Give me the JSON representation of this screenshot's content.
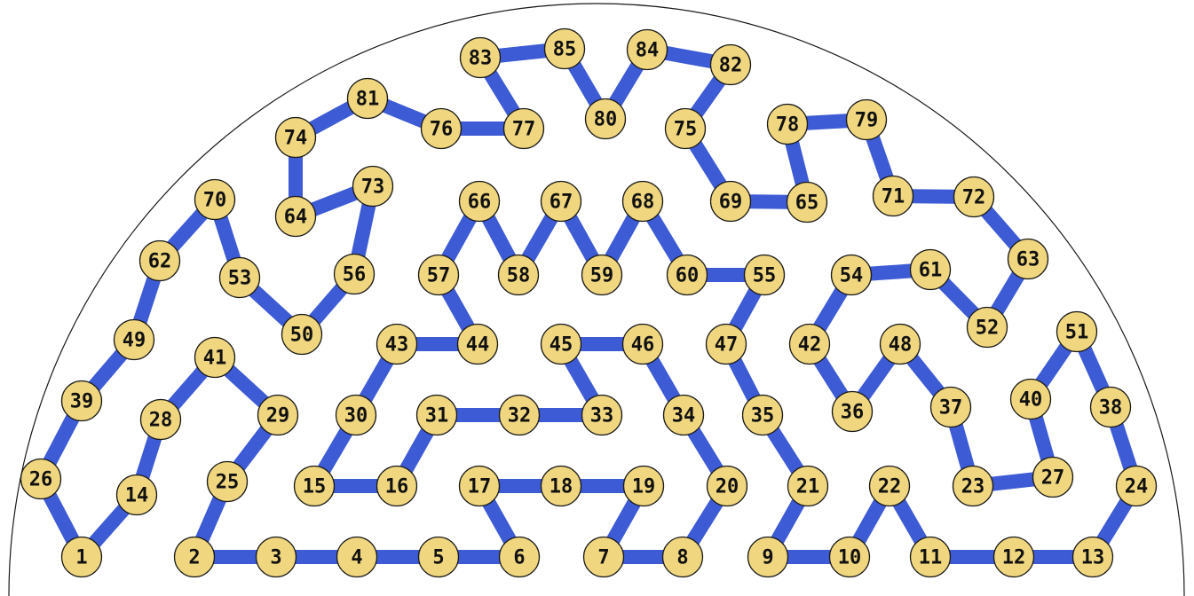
{
  "colors": {
    "edge": "#3d5bd4",
    "node_fill": "#f0d77f",
    "node_stroke": "#1a1a1a",
    "label": "#111111",
    "boundary": "#1a1a1a"
  },
  "nodes": [
    "1",
    "2",
    "3",
    "4",
    "5",
    "6",
    "7",
    "8",
    "9",
    "10",
    "11",
    "12",
    "13",
    "14",
    "15",
    "16",
    "17",
    "18",
    "19",
    "20",
    "21",
    "22",
    "23",
    "24",
    "25",
    "26",
    "27",
    "28",
    "29",
    "30",
    "31",
    "32",
    "33",
    "34",
    "35",
    "36",
    "37",
    "38",
    "39",
    "40",
    "41",
    "42",
    "43",
    "44",
    "45",
    "46",
    "47",
    "48",
    "49",
    "50",
    "51",
    "52",
    "53",
    "54",
    "55",
    "56",
    "57",
    "58",
    "59",
    "60",
    "61",
    "62",
    "63",
    "64",
    "65",
    "66",
    "67",
    "68",
    "69",
    "70",
    "71",
    "72",
    "73",
    "74",
    "75",
    "76",
    "77",
    "78",
    "79",
    "80",
    "81",
    "82",
    "83",
    "84",
    "85"
  ],
  "edges": [
    [
      "1",
      "14"
    ],
    [
      "14",
      "28"
    ],
    [
      "28",
      "41"
    ],
    [
      "41",
      "29"
    ],
    [
      "29",
      "25"
    ],
    [
      "25",
      "2"
    ],
    [
      "2",
      "3"
    ],
    [
      "3",
      "4"
    ],
    [
      "4",
      "5"
    ],
    [
      "5",
      "6"
    ],
    [
      "6",
      "17"
    ],
    [
      "17",
      "18"
    ],
    [
      "18",
      "19"
    ],
    [
      "19",
      "7"
    ],
    [
      "7",
      "8"
    ],
    [
      "8",
      "20"
    ],
    [
      "20",
      "34"
    ],
    [
      "34",
      "46"
    ],
    [
      "46",
      "45"
    ],
    [
      "45",
      "33"
    ],
    [
      "33",
      "32"
    ],
    [
      "32",
      "31"
    ],
    [
      "31",
      "16"
    ],
    [
      "16",
      "15"
    ],
    [
      "15",
      "30"
    ],
    [
      "30",
      "43"
    ],
    [
      "43",
      "44"
    ],
    [
      "44",
      "57"
    ],
    [
      "57",
      "66"
    ],
    [
      "66",
      "58"
    ],
    [
      "58",
      "67"
    ],
    [
      "67",
      "59"
    ],
    [
      "59",
      "68"
    ],
    [
      "68",
      "60"
    ],
    [
      "60",
      "55"
    ],
    [
      "55",
      "47"
    ],
    [
      "47",
      "35"
    ],
    [
      "35",
      "21"
    ],
    [
      "21",
      "9"
    ],
    [
      "9",
      "10"
    ],
    [
      "10",
      "22"
    ],
    [
      "22",
      "11"
    ],
    [
      "11",
      "12"
    ],
    [
      "12",
      "13"
    ],
    [
      "13",
      "24"
    ],
    [
      "24",
      "38"
    ],
    [
      "38",
      "51"
    ],
    [
      "51",
      "40"
    ],
    [
      "40",
      "27"
    ],
    [
      "27",
      "23"
    ],
    [
      "23",
      "37"
    ],
    [
      "37",
      "48"
    ],
    [
      "48",
      "36"
    ],
    [
      "36",
      "42"
    ],
    [
      "42",
      "54"
    ],
    [
      "54",
      "61"
    ],
    [
      "61",
      "52"
    ],
    [
      "52",
      "63"
    ],
    [
      "63",
      "72"
    ],
    [
      "72",
      "71"
    ],
    [
      "71",
      "79"
    ],
    [
      "79",
      "78"
    ],
    [
      "78",
      "65"
    ],
    [
      "65",
      "69"
    ],
    [
      "69",
      "75"
    ],
    [
      "75",
      "82"
    ],
    [
      "82",
      "84"
    ],
    [
      "84",
      "80"
    ],
    [
      "80",
      "85"
    ],
    [
      "85",
      "83"
    ],
    [
      "83",
      "77"
    ],
    [
      "77",
      "76"
    ],
    [
      "76",
      "81"
    ],
    [
      "81",
      "74"
    ],
    [
      "74",
      "64"
    ],
    [
      "64",
      "73"
    ],
    [
      "73",
      "56"
    ],
    [
      "56",
      "50"
    ],
    [
      "50",
      "53"
    ],
    [
      "53",
      "70"
    ],
    [
      "70",
      "62"
    ],
    [
      "62",
      "49"
    ],
    [
      "49",
      "39"
    ],
    [
      "39",
      "26"
    ],
    [
      "26",
      "1"
    ]
  ]
}
